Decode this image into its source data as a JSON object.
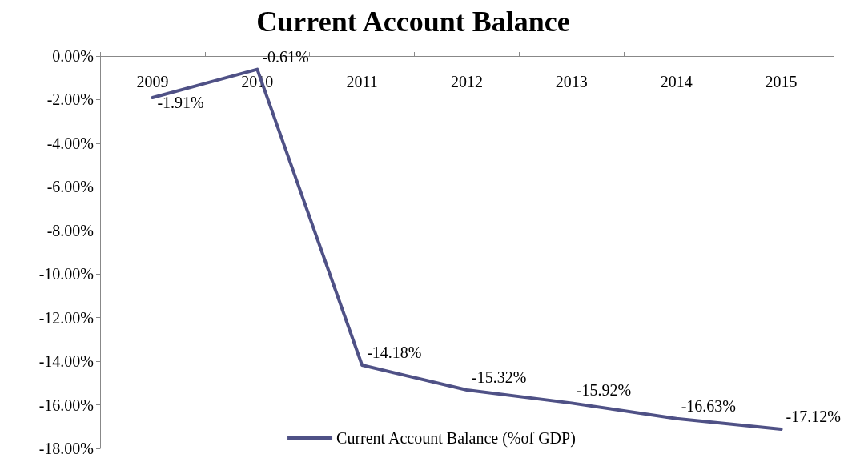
{
  "chart_data": {
    "type": "line",
    "title": "Current Account Balance",
    "categories": [
      "2009",
      "2010",
      "2011",
      "2012",
      "2013",
      "2014",
      "2015"
    ],
    "series": [
      {
        "name": "Current Account Balance (%of GDP)",
        "color": "#4f5186",
        "values": [
          -1.91,
          -0.61,
          -14.18,
          -15.32,
          -15.92,
          -16.63,
          -17.12
        ],
        "value_labels": [
          "-1.91%",
          "-0.61%",
          "-14.18%",
          "-15.32%",
          "-15.92%",
          "-16.63%",
          "-17.12%"
        ]
      }
    ],
    "ylim": [
      -18,
      0
    ],
    "yticks": [
      {
        "value": 0,
        "label": "0.00%"
      },
      {
        "value": -2,
        "label": "-2.00%"
      },
      {
        "value": -4,
        "label": "-4.00%"
      },
      {
        "value": -6,
        "label": "-6.00%"
      },
      {
        "value": -8,
        "label": "-8.00%"
      },
      {
        "value": -10,
        "label": "-10.00%"
      },
      {
        "value": -12,
        "label": "-12.00%"
      },
      {
        "value": -14,
        "label": "-14.00%"
      },
      {
        "value": -16,
        "label": "-16.00%"
      },
      {
        "value": -18,
        "label": "-18.00%"
      }
    ],
    "grid": false,
    "legend": "bottom",
    "marker": "none",
    "line_style": "solid"
  }
}
